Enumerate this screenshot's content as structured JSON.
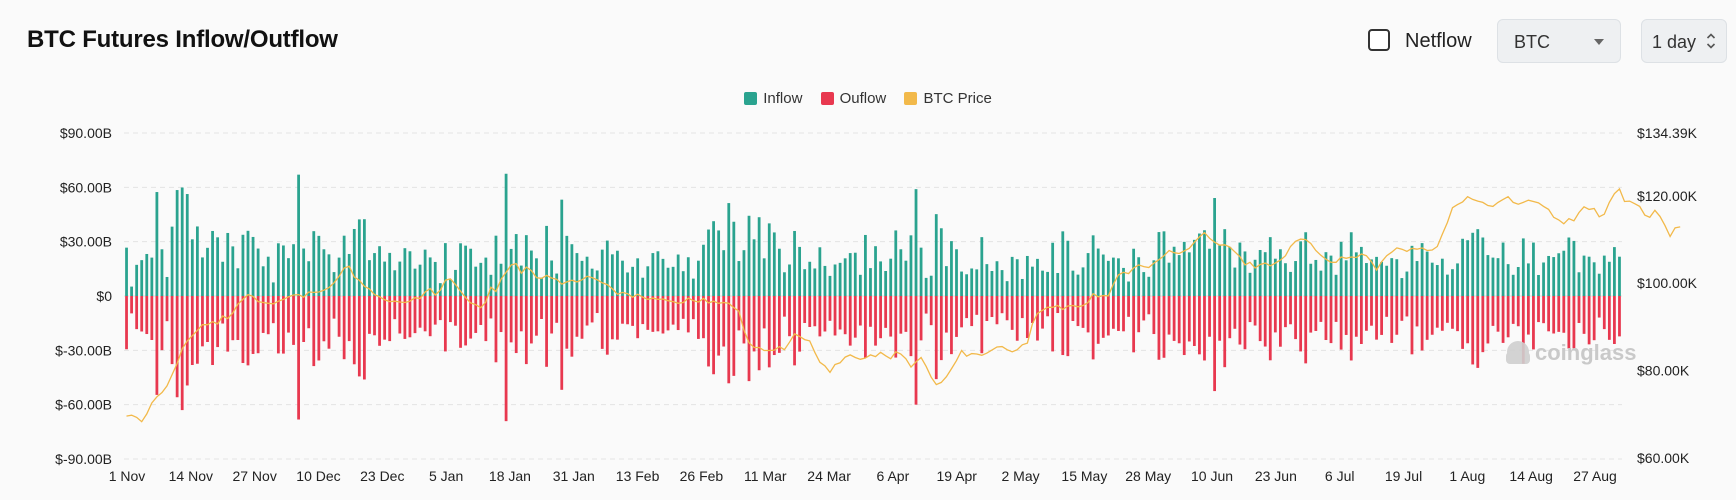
{
  "header": {
    "title": "BTC Futures Inflow/Outflow",
    "netflow_label": "Netflow",
    "netflow_checked": false,
    "asset_select": "BTC",
    "interval_select": "1 day"
  },
  "watermark": "coinglass",
  "colors": {
    "inflow": "#2aa38f",
    "outflow": "#e8384f",
    "price": "#f2b94a",
    "grid": "#e4e4e4"
  },
  "chart_data": {
    "type": "bar",
    "legend_position": "top-center",
    "grid": true,
    "series": [
      {
        "name": "Inflow",
        "axis": "left"
      },
      {
        "name": "Ouflow",
        "axis": "left"
      },
      {
        "name": "BTC Price",
        "axis": "right",
        "type": "line"
      }
    ],
    "y_left": {
      "ticks": [
        90,
        60,
        30,
        0,
        -30,
        -60,
        -90
      ],
      "tick_labels": [
        "$90.00B",
        "$60.00B",
        "$30.00B",
        "$0",
        "$-30.00B",
        "$-60.00B",
        "$-90.00B"
      ],
      "ylim": [
        -90,
        90
      ],
      "unit": "billions USD"
    },
    "y_right": {
      "ticks": [
        134.39,
        120,
        100,
        80,
        60
      ],
      "tick_labels": [
        "$134.39K",
        "$120.00K",
        "$100.00K",
        "$80.00K",
        "$60.00K"
      ],
      "ylim": [
        60,
        134.39
      ],
      "unit": "thousands USD"
    },
    "x_tick_labels": [
      "1 Nov",
      "14 Nov",
      "27 Nov",
      "10 Dec",
      "23 Dec",
      "5 Jan",
      "18 Jan",
      "31 Jan",
      "13 Feb",
      "26 Feb",
      "11 Mar",
      "24 Mar",
      "6 Apr",
      "19 Apr",
      "2 May",
      "15 May",
      "28 May",
      "10 Jun",
      "23 Jun",
      "6 Jul",
      "19 Jul",
      "1 Aug",
      "14 Aug",
      "27 Aug"
    ],
    "days": 300,
    "inflow": [
      26.7,
      5.2,
      17.2,
      19.8,
      23.2,
      21.2,
      57.4,
      25.8,
      10.5,
      38.3,
      58.5,
      59.9,
      56.3,
      31.3,
      38.4,
      21.3,
      26.6,
      35.9,
      32.4,
      18.9,
      34.8,
      27.4,
      15.3,
      33.8,
      36.0,
      32.6,
      26.2,
      16.4,
      21.7,
      7.5,
      29.1,
      27.9,
      20.9,
      28.6,
      67.0,
      26.2,
      19.2,
      35.8,
      33.2,
      25.8,
      23.0,
      13.2,
      21.2,
      33.3,
      23.2,
      37.0,
      42.3,
      42.4,
      19.8,
      23.7,
      27.5,
      19.0,
      23.8,
      14.2,
      19.0,
      26.4,
      24.7,
      15.1,
      17.3,
      25.6,
      21.3,
      18.8,
      7.1,
      29.2,
      9.2,
      14.4,
      29.1,
      27.8,
      26.1,
      16.2,
      18.3,
      21.2,
      11.7,
      33.3,
      17.8,
      67.5,
      26.0,
      34.2,
      16.8,
      33.6,
      25.1,
      20.8,
      10.2,
      38.7,
      19.6,
      12.4,
      53.2,
      33.2,
      28.6,
      23.7,
      19.4,
      21.7,
      15.1,
      14.1,
      25.6,
      30.6,
      23.0,
      25.0,
      19.5,
      13.0,
      16.1,
      20.8,
      10.1,
      16.4,
      23.7,
      24.7,
      20.5,
      15.6,
      16.1,
      22.9,
      13.7,
      21.4,
      9.6,
      19.5,
      28.3,
      36.7,
      41.3,
      36.2,
      25.3,
      51.3,
      41.0,
      19.3,
      25.3,
      44.3,
      31.3,
      43.5,
      20.8,
      40.1,
      35.1,
      26.1,
      13.1,
      17.4,
      35.9,
      27.1,
      14.8,
      18.9,
      15.2,
      26.9,
      16.6,
      11.1,
      17.4,
      18.3,
      20.8,
      23.7,
      23.9,
      11.7,
      33.7,
      15.4,
      27.5,
      19.1,
      13.8,
      20.6,
      36.2,
      25.8,
      19.5,
      33.5,
      59.0,
      26.7,
      10.0,
      11.2,
      45.2,
      37.4,
      16.5,
      30.3,
      25.8,
      13.5,
      12.0,
      15.2,
      14.7,
      32.5,
      17.6,
      13.8,
      19.2,
      14.3,
      8.2,
      21.6,
      20.3,
      9.4,
      22.1,
      16.2,
      20.5,
      14.0,
      13.3,
      29.4,
      12.7,
      35.7,
      30.5,
      14.0,
      11.8,
      15.8,
      23.7,
      33.5,
      26.2,
      22.9,
      19.4,
      21.2,
      20.8,
      15.5,
      8.0,
      26.1,
      21.4,
      13.2,
      10.6,
      19.7,
      35.3,
      35.7,
      18.4,
      27.2,
      22.6,
      29.9,
      24.1,
      31.0,
      34.5,
      36.3,
      26.1,
      54.1,
      27.9,
      36.9,
      27.1,
      15.7,
      29.5,
      24.6,
      12.8,
      20.0,
      25.4,
      24.2,
      32.5,
      20.6,
      25.8,
      18.1,
      13.3,
      19.3,
      30.2,
      35.2,
      17.8,
      19.9,
      14.0,
      24.2,
      22.3,
      11.7,
      29.9,
      19.7,
      35.2,
      24.1,
      27.1,
      18.2,
      20.2,
      21.6,
      18.8,
      16.7,
      20.9,
      20.3,
      9.9,
      13.5,
      27.7,
      19.3,
      29.2,
      24.5,
      18.4,
      17.1,
      20.6,
      11.8,
      14.8,
      18.0,
      31.6,
      30.8,
      34.9,
      36.9,
      32.3,
      22.6,
      21.2,
      20.9,
      29.5,
      17.6,
      11.7,
      16.0,
      31.8,
      18.0,
      29.5,
      11.6,
      18.5,
      22.1,
      21.5,
      23.6,
      25.0,
      32.3,
      30.4,
      13.1,
      22.3,
      21.7,
      18.6,
      12.3,
      22.3,
      18.9,
      27.0,
      21.7
    ],
    "outflow": [
      -29.4,
      -9.6,
      -18.3,
      -19.6,
      -21.0,
      -24.3,
      -54.6,
      -29.9,
      -13.9,
      -37.6,
      -55.9,
      -63.0,
      -49.4,
      -38.1,
      -37.4,
      -27.8,
      -25.4,
      -38.1,
      -28.2,
      -15.2,
      -30.7,
      -24.4,
      -24.3,
      -37.0,
      -38.3,
      -32.0,
      -31.6,
      -20.4,
      -21.1,
      -15.0,
      -31.7,
      -31.8,
      -20.2,
      -27.0,
      -68.2,
      -25.4,
      -17.8,
      -38.7,
      -35.6,
      -25.0,
      -29.1,
      -12.5,
      -22.5,
      -34.9,
      -24.9,
      -37.7,
      -44.4,
      -46.1,
      -20.9,
      -21.7,
      -27.5,
      -24.1,
      -24.9,
      -12.8,
      -20.7,
      -23.7,
      -22.8,
      -20.5,
      -17.5,
      -19.5,
      -22.2,
      -15.8,
      -13.3,
      -30.6,
      -14.4,
      -16.4,
      -28.6,
      -27.3,
      -23.5,
      -20.4,
      -16.0,
      -24.9,
      -12.4,
      -36.6,
      -19.9,
      -69.1,
      -25.6,
      -31.5,
      -19.5,
      -37.6,
      -26.2,
      -21.9,
      -12.7,
      -39.1,
      -20.7,
      -14.8,
      -51.8,
      -29.1,
      -33.5,
      -22.5,
      -23.6,
      -16.3,
      -14.6,
      -9.4,
      -29.2,
      -32.4,
      -23.9,
      -24.1,
      -15.3,
      -15.6,
      -16.5,
      -23.3,
      -15.5,
      -18.7,
      -19.8,
      -19.5,
      -20.7,
      -19.0,
      -15.8,
      -18.8,
      -12.6,
      -20.1,
      -12.8,
      -23.7,
      -23.3,
      -38.9,
      -43.2,
      -32.9,
      -27.9,
      -48.2,
      -44.1,
      -19.0,
      -26.2,
      -47.0,
      -30.6,
      -41.0,
      -17.9,
      -39.4,
      -32.6,
      -31.4,
      -11.4,
      -22.2,
      -38.3,
      -30.7,
      -14.9,
      -17.1,
      -16.7,
      -22.3,
      -19.6,
      -13.7,
      -21.8,
      -18.5,
      -21.1,
      -27.4,
      -23.0,
      -16.3,
      -34.1,
      -17.0,
      -27.4,
      -23.3,
      -17.6,
      -22.4,
      -34.0,
      -20.8,
      -19.8,
      -33.2,
      -60.0,
      -24.5,
      -9.7,
      -16.1,
      -45.9,
      -35.4,
      -20.2,
      -32.1,
      -22.6,
      -17.3,
      -12.2,
      -16.6,
      -10.4,
      -31.6,
      -13.8,
      -11.6,
      -15.6,
      -9.5,
      -13.4,
      -18.7,
      -24.7,
      -12.2,
      -23.2,
      -14.9,
      -24.6,
      -18.0,
      -11.2,
      -30.6,
      -9.4,
      -32.6,
      -33.2,
      -13.8,
      -16.6,
      -17.6,
      -20.1,
      -35.0,
      -26.4,
      -23.1,
      -21.8,
      -18.1,
      -19.3,
      -19.5,
      -11.5,
      -31.1,
      -20.0,
      -13.5,
      -10.1,
      -21.0,
      -35.2,
      -34.1,
      -21.3,
      -24.8,
      -26.1,
      -32.6,
      -25.1,
      -27.6,
      -32.2,
      -35.6,
      -22.5,
      -52.5,
      -24.7,
      -39.3,
      -23.3,
      -18.1,
      -26.8,
      -29.4,
      -14.4,
      -16.3,
      -24.9,
      -27.9,
      -35.5,
      -20.1,
      -28.0,
      -17.2,
      -15.6,
      -23.8,
      -30.6,
      -37.2,
      -20.2,
      -19.3,
      -14.3,
      -24.3,
      -26.0,
      -14.3,
      -29.6,
      -21.5,
      -35.6,
      -22.5,
      -26.5,
      -19.2,
      -16.4,
      -24.1,
      -21.5,
      -11.5,
      -25.9,
      -21.4,
      -13.7,
      -11.3,
      -32.2,
      -16.8,
      -30.1,
      -24.2,
      -21.4,
      -17.5,
      -19.2,
      -14.8,
      -18.1,
      -19.4,
      -29.2,
      -26.1,
      -37.8,
      -39.7,
      -31.0,
      -26.2,
      -16.5,
      -19.7,
      -25.9,
      -22.8,
      -15.4,
      -16.7,
      -37.4,
      -21.3,
      -29.5,
      -14.4,
      -15.0,
      -19.5,
      -20.7,
      -19.8,
      -20.3,
      -29.0,
      -28.9,
      -14.9,
      -20.9,
      -26.7,
      -24.4,
      -11.9,
      -18.3,
      -24.2,
      -26.5,
      -22.3
    ],
    "btc_price": [
      69.6,
      69.8,
      69.3,
      68.3,
      70.1,
      72.6,
      74.0,
      75.0,
      76.5,
      79.1,
      81.6,
      85.0,
      86.8,
      88.0,
      89.2,
      90.5,
      90.5,
      91.2,
      90.7,
      92.5,
      91.9,
      93.2,
      95.2,
      96.3,
      97.4,
      97.0,
      95.8,
      95.6,
      95.4,
      95.3,
      95.9,
      96.3,
      96.9,
      97.3,
      97.4,
      96.8,
      98.0,
      97.9,
      98.0,
      98.4,
      99.0,
      100.1,
      101.6,
      103.5,
      103.9,
      101.4,
      100.7,
      99.3,
      98.7,
      97.4,
      96.9,
      96.2,
      95.8,
      95.9,
      95.7,
      95.6,
      95.9,
      96.7,
      96.5,
      98.0,
      98.8,
      97.3,
      98.4,
      100.7,
      101.0,
      99.7,
      98.2,
      96.7,
      95.5,
      95.1,
      94.4,
      95.7,
      99.1,
      98.1,
      100.9,
      102.5,
      104.2,
      104.5,
      102.3,
      103.7,
      102.9,
      101.3,
      101.1,
      101.8,
      101.2,
      100.9,
      99.8,
      100.3,
      100.7,
      100.3,
      100.8,
      101.6,
      101.3,
      100.8,
      100.1,
      99.7,
      98.7,
      97.5,
      97.9,
      97.6,
      96.8,
      97.5,
      96.8,
      96.3,
      96.6,
      96.3,
      96.4,
      96.0,
      95.8,
      95.4,
      95.6,
      96.6,
      96.0,
      95.7,
      96.5,
      95.5,
      95.9,
      95.4,
      95.6,
      95.4,
      94.4,
      93.6,
      89.3,
      86.4,
      85.3,
      85.3,
      84.6,
      84.6,
      84.7,
      85.5,
      84.8,
      86.5,
      88.4,
      87.8,
      87.1,
      86.8,
      84.2,
      81.9,
      81.1,
      79.6,
      81.4,
      81.8,
      83.1,
      83.6,
      83.0,
      82.6,
      82.9,
      83.6,
      83.2,
      84.2,
      83.4,
      82.7,
      84.3,
      83.8,
      82.7,
      80.8,
      82.0,
      83.0,
      81.0,
      78.5,
      76.8,
      77.3,
      78.6,
      80.4,
      82.3,
      84.6,
      83.3,
      83.9,
      83.8,
      83.5,
      84.0,
      84.7,
      85.4,
      85.5,
      84.8,
      84.3,
      84.8,
      85.9,
      86.3,
      90.7,
      93.1,
      93.8,
      94.5,
      94.5,
      94.9,
      94.0,
      94.8,
      94.9,
      94.6,
      94.9,
      95.6,
      97.6,
      96.9,
      97.2,
      97.1,
      99.8,
      101.9,
      102.5,
      102.2,
      103.5,
      104.2,
      103.8,
      103.6,
      104.6,
      105.4,
      106.3,
      107.5,
      107.0,
      106.8,
      107.4,
      108.0,
      109.4,
      110.6,
      111.6,
      110.3,
      109.4,
      108.7,
      108.8,
      108.3,
      107.2,
      106.1,
      104.2,
      104.8,
      103.5,
      104.3,
      104.6,
      104.0,
      104.6,
      105.3,
      106.3,
      108.4,
      109.6,
      110.1,
      110.0,
      109.1,
      107.5,
      106.4,
      105.5,
      104.8,
      104.8,
      106.0,
      105.7,
      106.0,
      105.9,
      106.7,
      106.3,
      104.9,
      103.0,
      104.9,
      106.3,
      107.1,
      108.1,
      107.8,
      107.3,
      108.0,
      107.8,
      108.1,
      107.5,
      107.6,
      108.4,
      111.2,
      113.9,
      117.3,
      118.0,
      118.6,
      119.8,
      119.2,
      118.8,
      118.5,
      117.8,
      117.6,
      118.5,
      119.2,
      119.8,
      118.5,
      118.1,
      118.5,
      119.0,
      118.7,
      118.4,
      117.6,
      116.9,
      115.1,
      114.5,
      113.6,
      114.8,
      114.3,
      116.2,
      117.5,
      116.9,
      117.1,
      115.2,
      115.8,
      118.5,
      120.5,
      121.6,
      118.7,
      118.8,
      118.2,
      117.6,
      115.6,
      115.1,
      116.7,
      115.3,
      113.2,
      110.7,
      112.7,
      112.9
    ]
  }
}
